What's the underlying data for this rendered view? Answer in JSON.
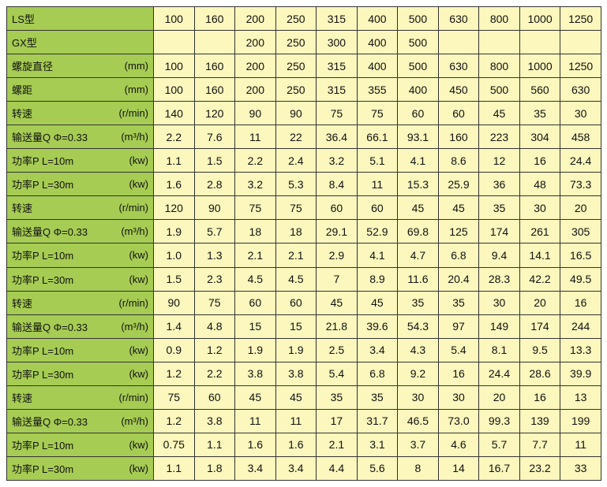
{
  "rows": [
    {
      "label": "LS型",
      "unit": "",
      "values": [
        "100",
        "160",
        "200",
        "250",
        "315",
        "400",
        "500",
        "630",
        "800",
        "1000",
        "1250"
      ]
    },
    {
      "label": "GX型",
      "unit": "",
      "values": [
        "",
        "",
        "200",
        "250",
        "300",
        "400",
        "500",
        "",
        "",
        "",
        ""
      ]
    },
    {
      "label": "螺旋直径",
      "unit": "(mm)",
      "values": [
        "100",
        "160",
        "200",
        "250",
        "315",
        "400",
        "500",
        "630",
        "800",
        "1000",
        "1250"
      ]
    },
    {
      "label": "螺距",
      "unit": "(mm)",
      "values": [
        "100",
        "160",
        "200",
        "250",
        "315",
        "355",
        "400",
        "450",
        "500",
        "560",
        "630"
      ]
    },
    {
      "label": "转速",
      "unit": "(r/min)",
      "values": [
        "140",
        "120",
        "90",
        "90",
        "75",
        "75",
        "60",
        "60",
        "45",
        "35",
        "30"
      ]
    },
    {
      "label": "输送量Q Φ=0.33",
      "unit": "(m³/h)",
      "values": [
        "2.2",
        "7.6",
        "11",
        "22",
        "36.4",
        "66.1",
        "93.1",
        "160",
        "223",
        "304",
        "458"
      ]
    },
    {
      "label": "功率P L=10m",
      "unit": "(kw)",
      "values": [
        "1.1",
        "1.5",
        "2.2",
        "2.4",
        "3.2",
        "5.1",
        "4.1",
        "8.6",
        "12",
        "16",
        "24.4"
      ]
    },
    {
      "label": "功率P L=30m",
      "unit": "(kw)",
      "values": [
        "1.6",
        "2.8",
        "3.2",
        "5.3",
        "8.4",
        "11",
        "15.3",
        "25.9",
        "36",
        "48",
        "73.3"
      ]
    },
    {
      "label": "转速",
      "unit": "(r/min)",
      "values": [
        "120",
        "90",
        "75",
        "75",
        "60",
        "60",
        "45",
        "45",
        "35",
        "30",
        "20"
      ]
    },
    {
      "label": "输送量Q Φ=0.33",
      "unit": "(m³/h)",
      "values": [
        "1.9",
        "5.7",
        "18",
        "18",
        "29.1",
        "52.9",
        "69.8",
        "125",
        "174",
        "261",
        "305"
      ]
    },
    {
      "label": "功率P L=10m",
      "unit": "(kw)",
      "values": [
        "1.0",
        "1.3",
        "2.1",
        "2.1",
        "2.9",
        "4.1",
        "4.7",
        "6.8",
        "9.4",
        "14.1",
        "16.5"
      ]
    },
    {
      "label": "功率P L=30m",
      "unit": "(kw)",
      "values": [
        "1.5",
        "2.3",
        "4.5",
        "4.5",
        "7",
        "8.9",
        "11.6",
        "20.4",
        "28.3",
        "42.2",
        "49.5"
      ]
    },
    {
      "label": "转速",
      "unit": "(r/min)",
      "values": [
        "90",
        "75",
        "60",
        "60",
        "45",
        "45",
        "35",
        "35",
        "30",
        "20",
        "16"
      ]
    },
    {
      "label": "输送量Q Φ=0.33",
      "unit": "(m³/h)",
      "values": [
        "1.4",
        "4.8",
        "15",
        "15",
        "21.8",
        "39.6",
        "54.3",
        "97",
        "149",
        "174",
        "244"
      ]
    },
    {
      "label": "功率P L=10m",
      "unit": "(kw)",
      "values": [
        "0.9",
        "1.2",
        "1.9",
        "1.9",
        "2.5",
        "3.4",
        "4.3",
        "5.4",
        "8.1",
        "9.5",
        "13.3"
      ]
    },
    {
      "label": "功率P L=30m",
      "unit": "(kw)",
      "values": [
        "1.2",
        "2.2",
        "3.8",
        "3.8",
        "5.4",
        "6.8",
        "9.2",
        "16",
        "24.4",
        "28.6",
        "39.9"
      ]
    },
    {
      "label": "转速",
      "unit": "(r/min)",
      "values": [
        "75",
        "60",
        "45",
        "45",
        "35",
        "35",
        "30",
        "30",
        "20",
        "16",
        "13"
      ]
    },
    {
      "label": "输送量Q Φ=0.33",
      "unit": "(m³/h)",
      "values": [
        "1.2",
        "3.8",
        "11",
        "11",
        "17",
        "31.7",
        "46.5",
        "73.0",
        "99.3",
        "139",
        "199"
      ]
    },
    {
      "label": "功率P L=10m",
      "unit": "(kw)",
      "values": [
        "0.75",
        "1.1",
        "1.6",
        "1.6",
        "2.1",
        "3.1",
        "3.7",
        "4.6",
        "5.7",
        "7.7",
        "11"
      ]
    },
    {
      "label": "功率P L=30m",
      "unit": "(kw)",
      "values": [
        "1.1",
        "1.8",
        "3.4",
        "3.4",
        "4.4",
        "5.6",
        "8",
        "14",
        "16.7",
        "23.2",
        "33"
      ]
    }
  ],
  "colors": {
    "label_bg": "#a6cc53",
    "value_bg": "#fbf7bd",
    "border": "#333333"
  }
}
